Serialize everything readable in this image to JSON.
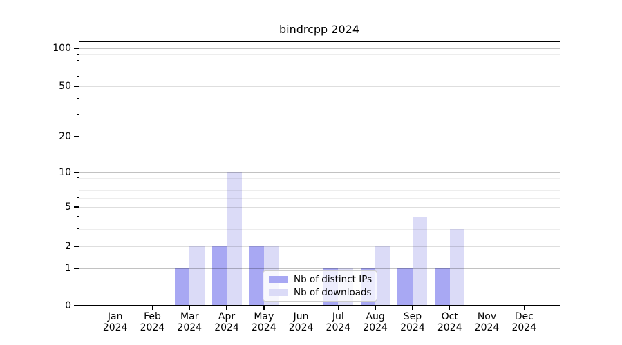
{
  "chart_data": {
    "type": "bar",
    "title": "bindrcpp 2024",
    "categories": [
      "Jan",
      "Feb",
      "Mar",
      "Apr",
      "May",
      "Jun",
      "Jul",
      "Aug",
      "Sep",
      "Oct",
      "Nov",
      "Dec"
    ],
    "year_label": "2024",
    "series": [
      {
        "name": "Nb of distinct IPs",
        "color": "#a8a8f3",
        "values": [
          0,
          0,
          1,
          2,
          2,
          0,
          1,
          1,
          1,
          1,
          0,
          0
        ]
      },
      {
        "name": "Nb of downloads",
        "color": "#dbdbf7",
        "values": [
          0,
          0,
          2,
          10,
          2,
          0,
          1,
          2,
          4,
          3,
          0,
          0
        ]
      }
    ],
    "yscale": "symlog",
    "ylim": [
      0,
      113
    ],
    "yticks_labeled": [
      0,
      1,
      2,
      5,
      10,
      20,
      50,
      100
    ],
    "yticks_minor": [
      3,
      4,
      6,
      7,
      8,
      9,
      30,
      40,
      60,
      70,
      80,
      90
    ],
    "grid": "horizontal",
    "legend_position": "lower-center"
  },
  "colors": {
    "grid_major": "rgba(0,0,0,0.24)",
    "grid_labeled_minor": "rgba(0,0,0,0.13)",
    "grid_minor": "rgba(0,0,0,0.07)",
    "axis": "#000000"
  }
}
